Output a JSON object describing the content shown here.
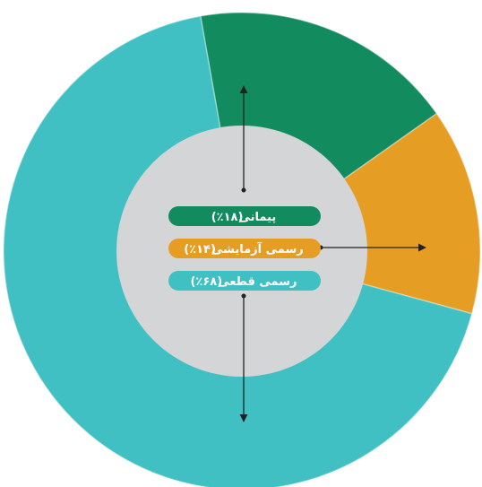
{
  "chart_data": {
    "type": "donut",
    "categories": [
      "پیمانی",
      "رسمی آزمایشی",
      "رسمی قطعی"
    ],
    "values": [
      18,
      14,
      68
    ],
    "value_labels": [
      "(۱۸٪)",
      "(۱۴٪)",
      "(۶۸٪)"
    ],
    "colors": [
      "#128b5f",
      "#e69d24",
      "#40c0c2"
    ]
  }
}
